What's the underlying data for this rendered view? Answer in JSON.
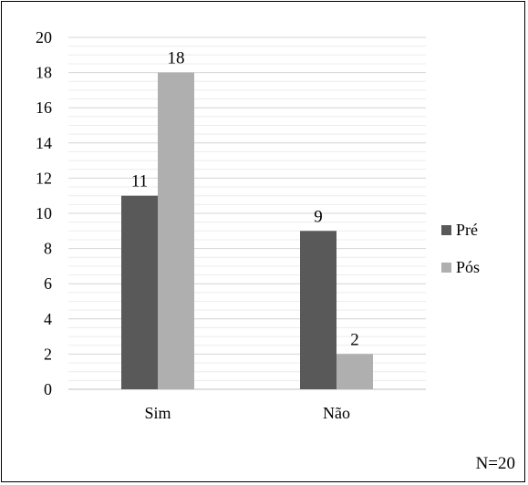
{
  "chart_data": {
    "type": "bar",
    "categories": [
      "Sim",
      "Não"
    ],
    "series": [
      {
        "name": "Pré",
        "values": [
          11,
          9
        ],
        "color": "#595959"
      },
      {
        "name": "Pós",
        "values": [
          18,
          2
        ],
        "color": "#afafaf"
      }
    ],
    "ylim": [
      0,
      20
    ],
    "yticks": [
      0,
      2,
      4,
      6,
      8,
      10,
      12,
      14,
      16,
      18,
      20
    ],
    "minor_grid_step": 0.5,
    "grid": true,
    "legend_position": "right",
    "data_labels": true,
    "note": "N=20"
  }
}
